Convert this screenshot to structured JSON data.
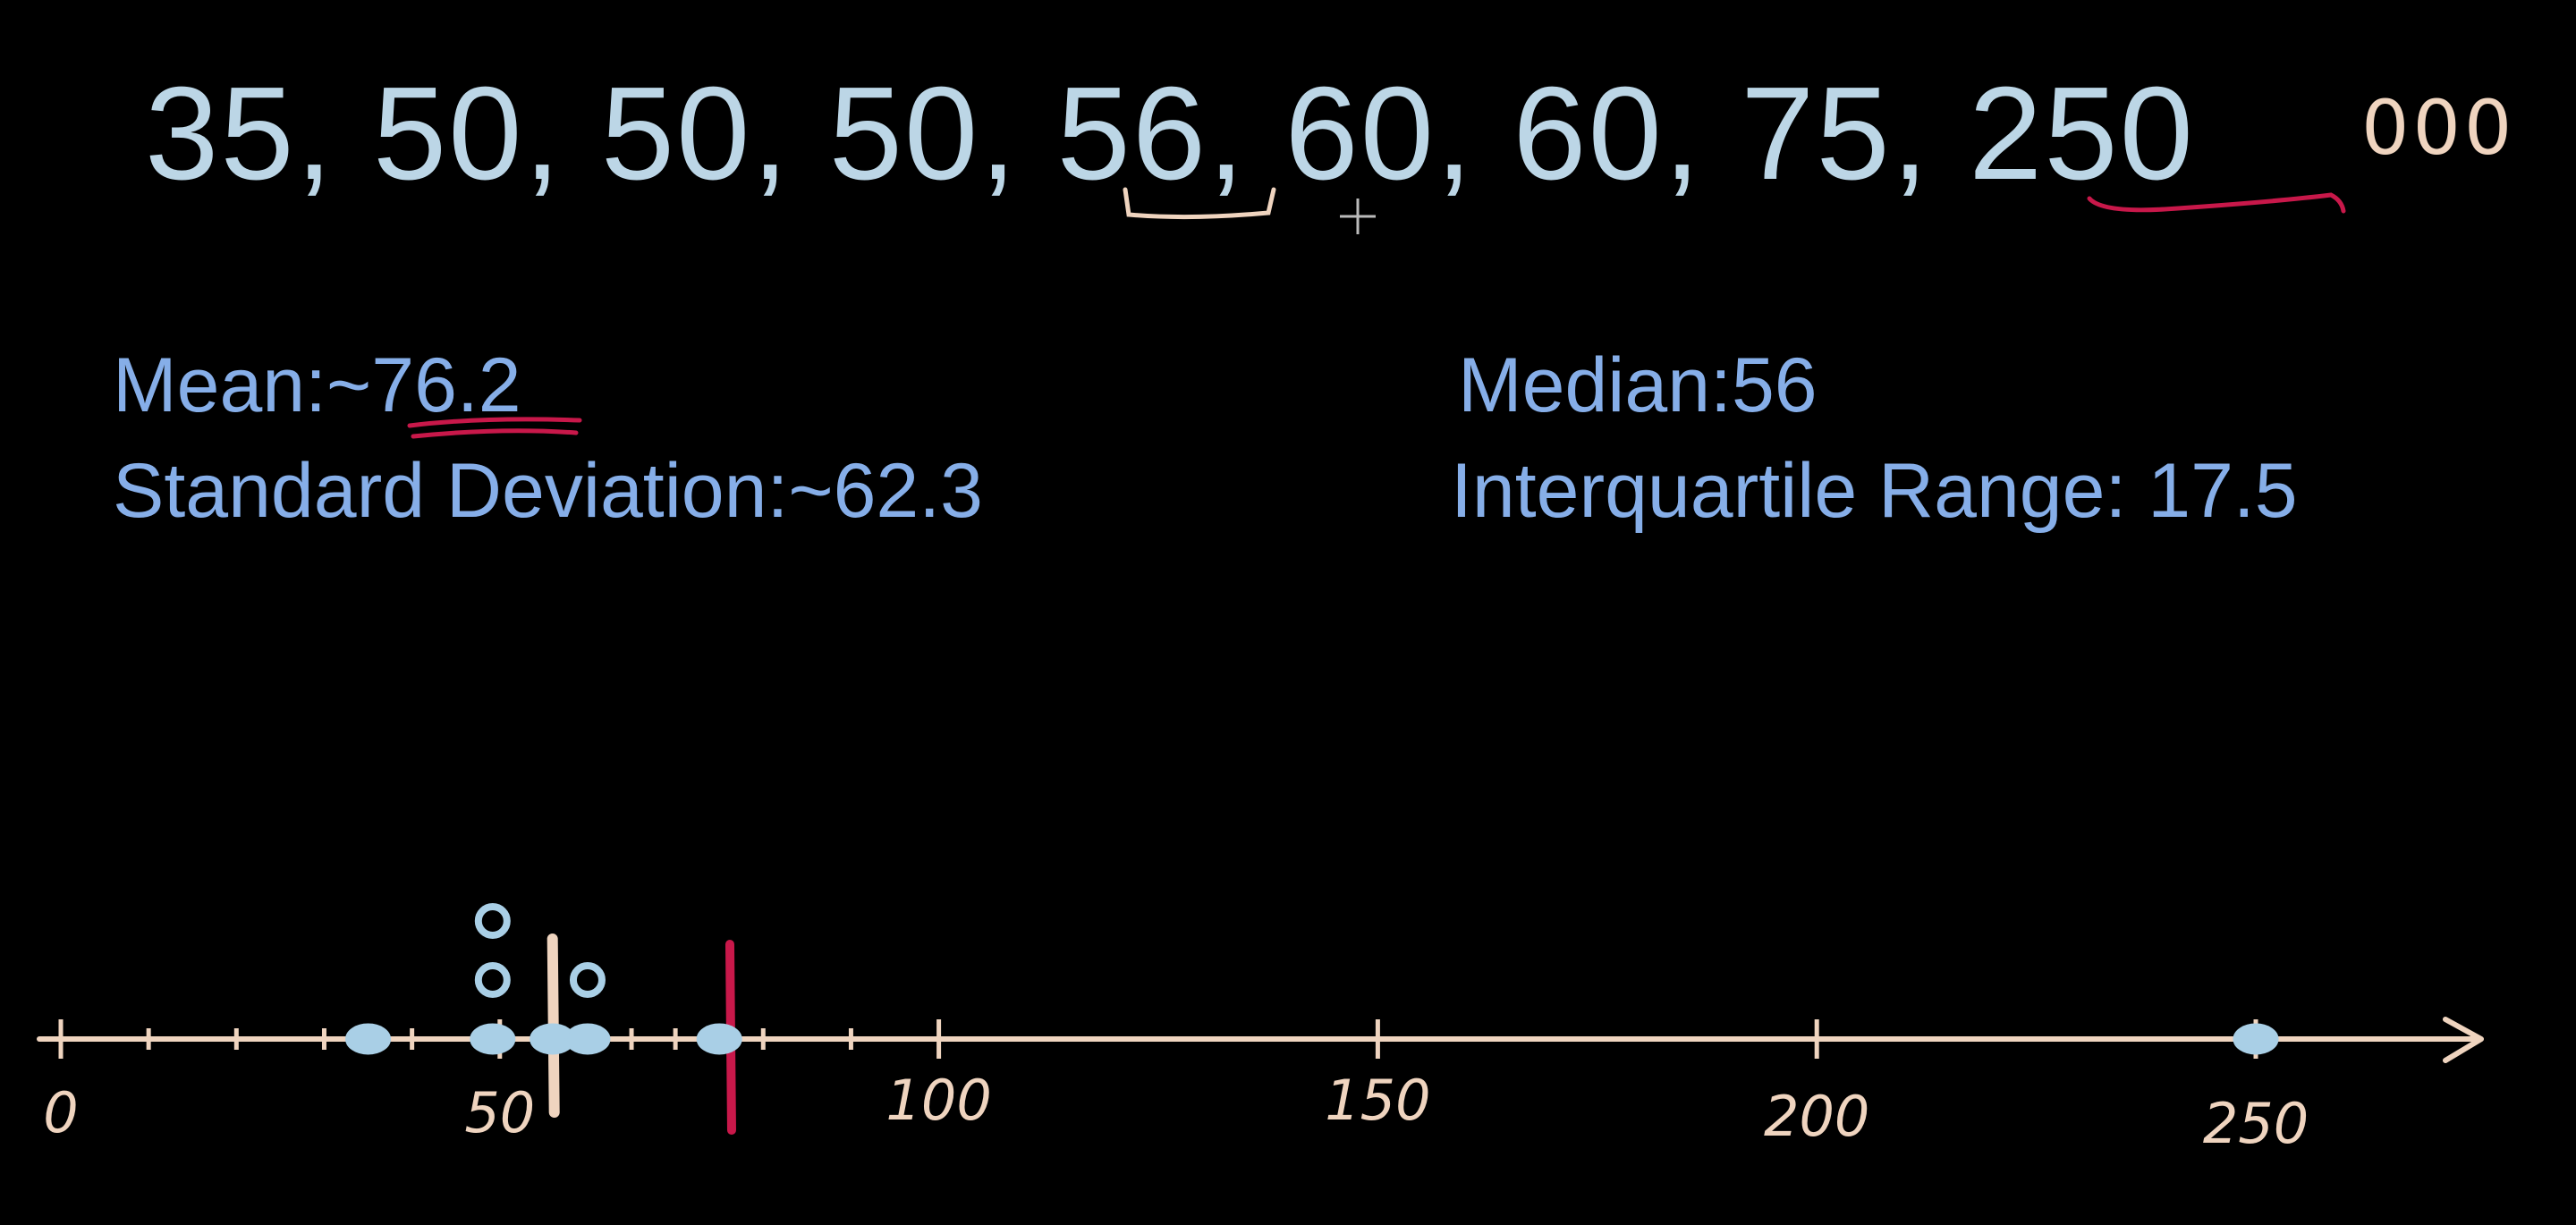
{
  "sequence": {
    "values": [
      "35",
      "50",
      "50",
      "50",
      "56",
      "60",
      "60",
      "75",
      "250"
    ],
    "separator": ", ",
    "suffix": "000"
  },
  "stats": {
    "mean": "Mean:~76.2",
    "std": "Standard Deviation:~62.3",
    "median": "Median:56",
    "iqr": "Interquartile Range: 17.5"
  },
  "number_line": {
    "ticks": [
      {
        "label": "0",
        "value": 0
      },
      {
        "label": "50",
        "value": 50
      },
      {
        "label": "100",
        "value": 100
      },
      {
        "label": "150",
        "value": 150
      },
      {
        "label": "200",
        "value": 200
      },
      {
        "label": "250",
        "value": 250
      }
    ],
    "data_points": [
      35,
      50,
      50,
      50,
      56,
      60,
      60,
      75,
      250
    ],
    "median_marker": 56,
    "mean_marker": 76.2
  },
  "colors": {
    "background": "#000000",
    "sequence_text": "#bcd6e6",
    "stats_text": "#86aee8",
    "axis": "#efd4bf",
    "points": "#a9cfe6",
    "median_line": "#efd4bf",
    "mean_line": "#c8184a"
  }
}
